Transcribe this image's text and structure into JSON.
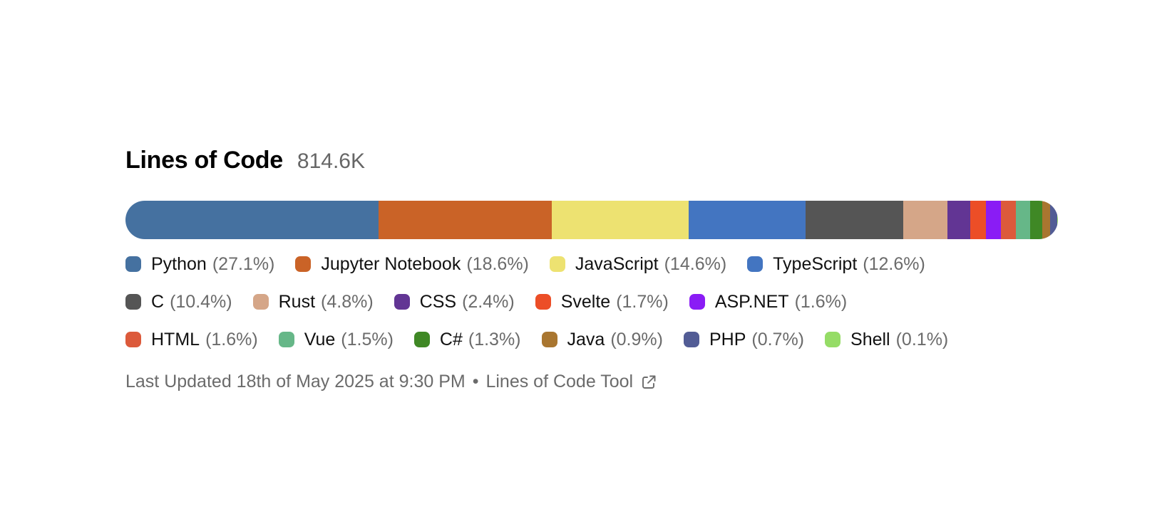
{
  "title": "Lines of Code",
  "total": "814.6K",
  "chart_data": {
    "type": "stacked-bar",
    "title": "Lines of Code",
    "total": "814.6K",
    "unit": "percent",
    "series": [
      {
        "name": "Python",
        "label": "(27.1%)",
        "value": 27.1,
        "color": "#4571a0"
      },
      {
        "name": "Jupyter Notebook",
        "label": "(18.6%)",
        "value": 18.6,
        "color": "#ca6327"
      },
      {
        "name": "JavaScript",
        "label": "(14.6%)",
        "value": 14.6,
        "color": "#ede271"
      },
      {
        "name": "TypeScript",
        "label": "(12.6%)",
        "value": 12.6,
        "color": "#4375c1"
      },
      {
        "name": "C",
        "label": "(10.4%)",
        "value": 10.4,
        "color": "#555555"
      },
      {
        "name": "Rust",
        "label": "(4.8%)",
        "value": 4.8,
        "color": "#d5a688"
      },
      {
        "name": "CSS",
        "label": "(2.4%)",
        "value": 2.4,
        "color": "#623594"
      },
      {
        "name": "Svelte",
        "label": "(1.7%)",
        "value": 1.7,
        "color": "#ec4e27"
      },
      {
        "name": "ASP.NET",
        "label": "(1.6%)",
        "value": 1.6,
        "color": "#8a1cf5"
      },
      {
        "name": "HTML",
        "label": "(1.6%)",
        "value": 1.6,
        "color": "#dc5a3b"
      },
      {
        "name": "Vue",
        "label": "(1.5%)",
        "value": 1.5,
        "color": "#66b788"
      },
      {
        "name": "C#",
        "label": "(1.3%)",
        "value": 1.3,
        "color": "#3f8825"
      },
      {
        "name": "Java",
        "label": "(0.9%)",
        "value": 0.9,
        "color": "#a97630"
      },
      {
        "name": "PHP",
        "label": "(0.7%)",
        "value": 0.7,
        "color": "#525c95"
      },
      {
        "name": "Shell",
        "label": "(0.1%)",
        "value": 0.1,
        "color": "#95dc66"
      }
    ],
    "legend_rows": [
      [
        0,
        1,
        2,
        3
      ],
      [
        4,
        5,
        6,
        7,
        8
      ],
      [
        9,
        10,
        11,
        12,
        13,
        14
      ]
    ]
  },
  "footer": {
    "updated": "Last Updated 18th of May 2025 at 9:30 PM",
    "separator": "•",
    "link_label": "Lines of Code Tool",
    "link_icon": "external-link-icon"
  }
}
